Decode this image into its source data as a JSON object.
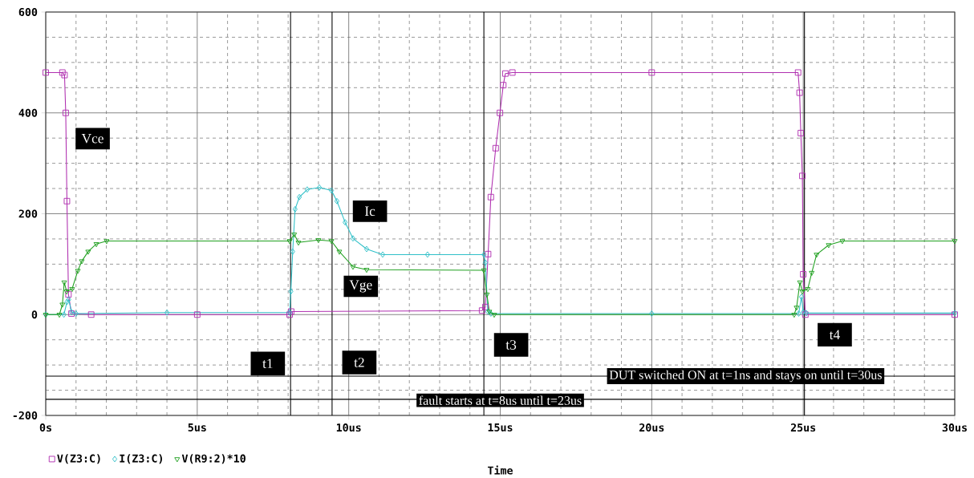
{
  "chart_data": {
    "type": "line",
    "xlabel": "Time",
    "xlim": [
      0,
      30
    ],
    "ylim": [
      -200,
      600
    ],
    "xticks": [
      {
        "value": 0,
        "label": "0s"
      },
      {
        "value": 5,
        "label": "5us"
      },
      {
        "value": 10,
        "label": "10us"
      },
      {
        "value": 15,
        "label": "15us"
      },
      {
        "value": 20,
        "label": "20us"
      },
      {
        "value": 25,
        "label": "25us"
      },
      {
        "value": 30,
        "label": "30us"
      }
    ],
    "yticks": [
      -200,
      0,
      200,
      400,
      600
    ],
    "grid": true,
    "legend": "bottom",
    "series": [
      {
        "name": "V(Z3:C)",
        "color": "#b030b0",
        "marker": "square",
        "x": [
          0,
          0.55,
          0.62,
          0.66,
          0.7,
          0.75,
          0.85,
          1.5,
          5,
          8.05,
          8.1,
          14.4,
          14.51,
          14.6,
          14.69,
          14.85,
          14.99,
          15.1,
          15.17,
          15.4,
          20,
          24.83,
          24.88,
          24.92,
          24.97,
          25.0,
          25.07,
          30
        ],
        "values": [
          480,
          480,
          475,
          400,
          225,
          40,
          2,
          0,
          0,
          0,
          6,
          8,
          15,
          120,
          233,
          330,
          400,
          455,
          478,
          480,
          480,
          480,
          440,
          360,
          275,
          80,
          0,
          0
        ]
      },
      {
        "name": "I(Z3:C)",
        "color": "#30c0c8",
        "marker": "diamond",
        "x": [
          0,
          0.6,
          0.7,
          0.76,
          0.85,
          1.0,
          4,
          8.05,
          8.09,
          8.15,
          8.23,
          8.37,
          8.63,
          9.03,
          9.43,
          9.61,
          9.88,
          10.14,
          10.59,
          11.12,
          12.6,
          14.46,
          14.51,
          14.59,
          14.69,
          20,
          24.85,
          24.94,
          25.0,
          25.1,
          30
        ],
        "values": [
          0,
          0,
          25,
          30,
          5,
          2,
          4,
          4,
          46,
          125,
          209,
          233,
          248,
          252,
          246,
          225,
          183,
          151,
          130,
          119,
          119,
          119,
          103,
          6,
          2,
          2,
          2,
          35,
          5,
          3,
          3
        ]
      },
      {
        "name": "V(R9:2)*10",
        "color": "#20a020",
        "marker": "triangle",
        "x": [
          0,
          0.45,
          0.55,
          0.61,
          0.69,
          0.87,
          1.06,
          1.19,
          1.4,
          1.67,
          2.01,
          8.05,
          8.2,
          8.34,
          9.0,
          9.43,
          9.69,
          10.14,
          10.59,
          14.46,
          14.56,
          14.64,
          14.8,
          24.7,
          24.78,
          24.89,
          24.97,
          25.15,
          25.28,
          25.44,
          25.84,
          26.29,
          30
        ],
        "values": [
          0,
          0,
          20,
          64,
          46,
          51,
          87,
          106,
          125,
          140,
          146,
          146,
          159,
          143,
          148,
          146,
          125,
          95,
          89,
          88,
          40,
          6,
          0,
          0,
          14,
          64,
          46,
          51,
          83,
          119,
          138,
          146,
          146
        ]
      }
    ],
    "annotations": [
      {
        "text": "Vce",
        "x": 1.55,
        "y": 349
      },
      {
        "text": "Ic",
        "x": 10.7,
        "y": 205
      },
      {
        "text": "Vge",
        "x": 10.4,
        "y": 56
      },
      "DUT switched ON at t=1ns and stays on until t=30us",
      "fault starts at t=8us until t=23us"
    ],
    "ref_lines": [
      {
        "axis": "x",
        "value": 8.08,
        "label": "t1",
        "color": "#000000"
      },
      {
        "axis": "x",
        "value": 9.45,
        "label": "t2",
        "color": "#000000"
      },
      {
        "axis": "x",
        "value": 14.46,
        "label": "t3",
        "color": "#000000"
      },
      {
        "axis": "x",
        "value": 25.04,
        "label": "t4",
        "color": "#000000"
      },
      {
        "axis": "y",
        "value": -122,
        "color": "#000000"
      },
      {
        "axis": "y",
        "value": -168,
        "color": "#000000"
      }
    ]
  }
}
